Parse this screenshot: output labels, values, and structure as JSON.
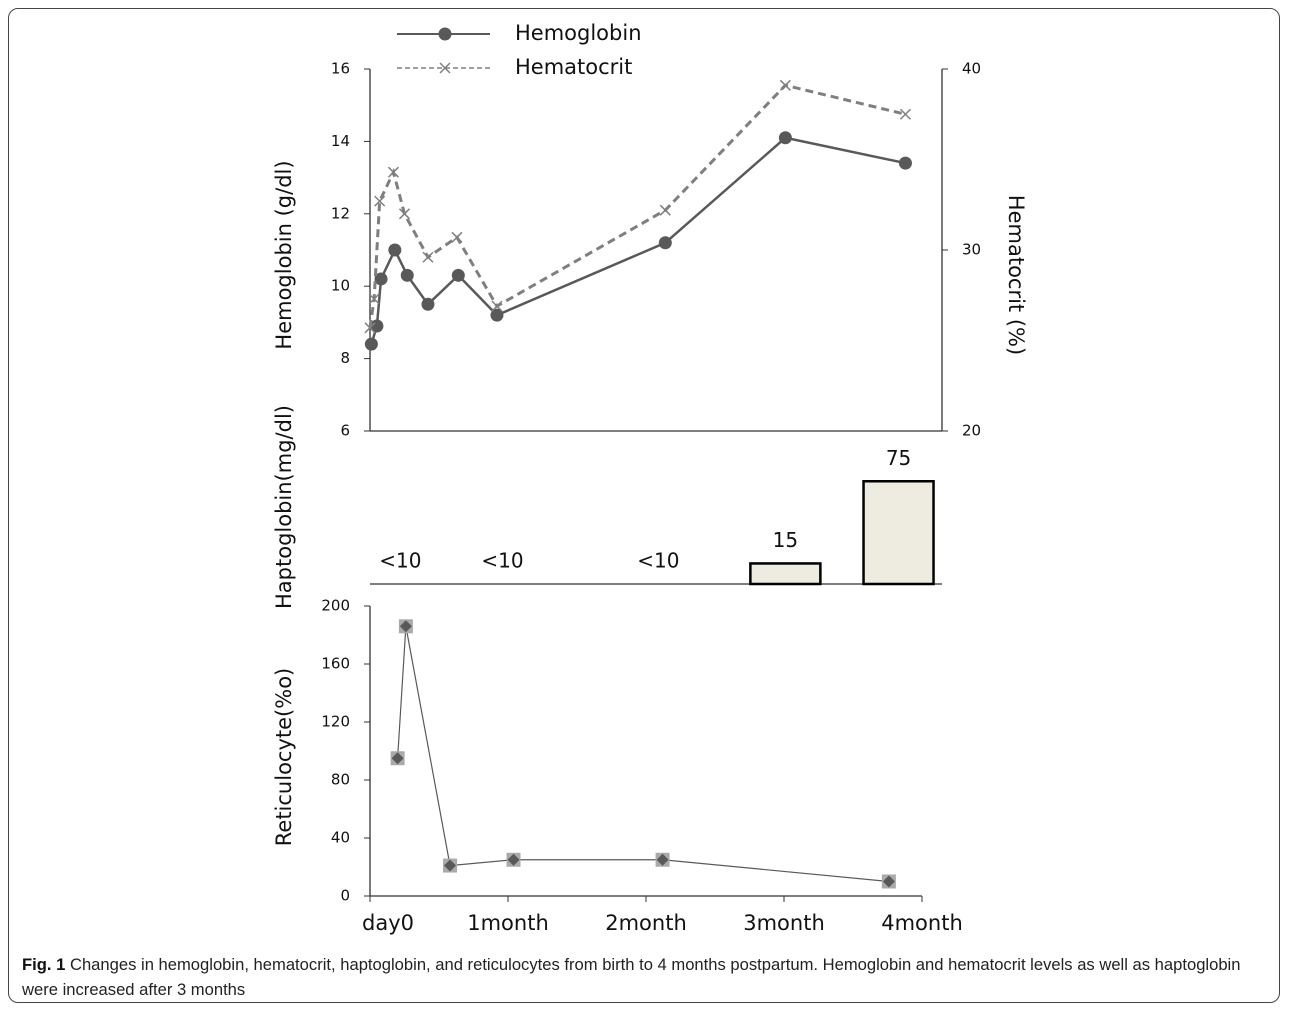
{
  "chart_data": [
    {
      "type": "line",
      "ylabel": "Hemoglobin (g/dl)",
      "y2label": "Hematocrit (%)",
      "xlim": [
        0,
        4
      ],
      "ylim": [
        6,
        16
      ],
      "yticks": [
        6,
        8,
        10,
        12,
        14,
        16
      ],
      "y2lim": [
        20,
        40
      ],
      "y2ticks": [
        20,
        30,
        40
      ],
      "series": [
        {
          "name": "Hemoglobin",
          "color": "#595959",
          "marker": "circle",
          "dashed": false,
          "x": [
            0.01,
            0.05,
            0.08,
            0.18,
            0.27,
            0.42,
            0.64,
            0.92,
            2.14,
            3.01,
            3.88
          ],
          "values": [
            8.4,
            8.9,
            10.2,
            11.0,
            10.3,
            9.5,
            10.3,
            9.2,
            11.2,
            14.1,
            13.4
          ]
        },
        {
          "name": "Hematocrit",
          "color": "#7f7f7f",
          "marker": "x",
          "dashed": true,
          "axis": "y2",
          "x": [
            0,
            0.03,
            0.07,
            0.17,
            0.25,
            0.42,
            0.63,
            0.92,
            2.14,
            3.01,
            3.88
          ],
          "values": [
            25.7,
            27.3,
            32.7,
            34.3,
            32.0,
            29.6,
            30.7,
            26.9,
            32.2,
            39.1,
            37.5
          ]
        }
      ]
    },
    {
      "type": "bar",
      "ylabel": "Haptoglobin(mg/dl)",
      "xlim": [
        0,
        4
      ],
      "color": "#eeece1",
      "x": [
        0.22,
        0.96,
        2.09,
        3.01,
        3.83
      ],
      "values": [
        null,
        null,
        null,
        15,
        75
      ],
      "value_labels": [
        "<10",
        "<10",
        "<10",
        "15",
        "75"
      ]
    },
    {
      "type": "line",
      "ylabel": "Reticulocyte(%o)",
      "color": "#595959",
      "marker": "diamond",
      "xlim": [
        0,
        4
      ],
      "xticks": [
        {
          "value": 0,
          "label": "day0"
        },
        {
          "value": 1,
          "label": "1month"
        },
        {
          "value": 2,
          "label": "2month"
        },
        {
          "value": 3,
          "label": "3month"
        },
        {
          "value": 4,
          "label": "4month"
        }
      ],
      "ylim": [
        0,
        200
      ],
      "yticks": [
        0,
        40,
        80,
        120,
        160,
        200
      ],
      "x": [
        0.2,
        0.26,
        0.58,
        1.04,
        2.12,
        3.76
      ],
      "values": [
        95,
        186,
        21,
        25,
        25,
        10
      ]
    }
  ],
  "caption": {
    "label": "Fig. 1",
    "text": "Changes in hemoglobin, hematocrit, haptoglobin, and reticulocytes from birth to 4 months postpartum. Hemoglobin and hematocrit levels as well as haptoglobin were increased after 3 months"
  }
}
